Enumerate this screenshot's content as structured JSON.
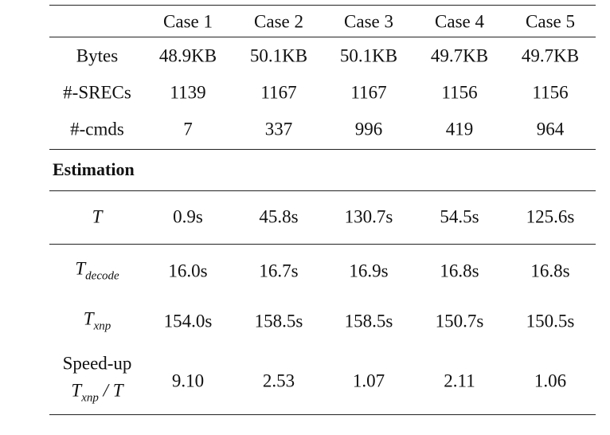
{
  "table": {
    "headers": [
      "",
      "Case 1",
      "Case 2",
      "Case 3",
      "Case 4",
      "Case 5"
    ],
    "top_rows": [
      {
        "label": "Bytes",
        "values": [
          "48.9KB",
          "50.1KB",
          "50.1KB",
          "49.7KB",
          "49.7KB"
        ]
      },
      {
        "label": "#-SRECs",
        "values": [
          "1139",
          "1167",
          "1167",
          "1156",
          "1156"
        ]
      },
      {
        "label": "#-cmds",
        "values": [
          "7",
          "337",
          "996",
          "419",
          "964"
        ]
      }
    ],
    "section_title": "Estimation",
    "rows": [
      {
        "label_main": "T",
        "label_sub": "",
        "values": [
          "0.9s",
          "45.8s",
          "130.7s",
          "54.5s",
          "125.6s"
        ]
      },
      {
        "label_main": "T",
        "label_sub": "decode",
        "values": [
          "16.0s",
          "16.7s",
          "16.9s",
          "16.8s",
          "16.8s"
        ]
      },
      {
        "label_main": "T",
        "label_sub": "xnp",
        "values": [
          "154.0s",
          "158.5s",
          "158.5s",
          "150.7s",
          "150.5s"
        ]
      }
    ],
    "speedup": {
      "line1": "Speed-up",
      "line2_main": "T",
      "line2_sub": "xnp",
      "line2_tail": " / T",
      "values": [
        "9.10",
        "2.53",
        "1.07",
        "2.11",
        "1.06"
      ]
    }
  }
}
